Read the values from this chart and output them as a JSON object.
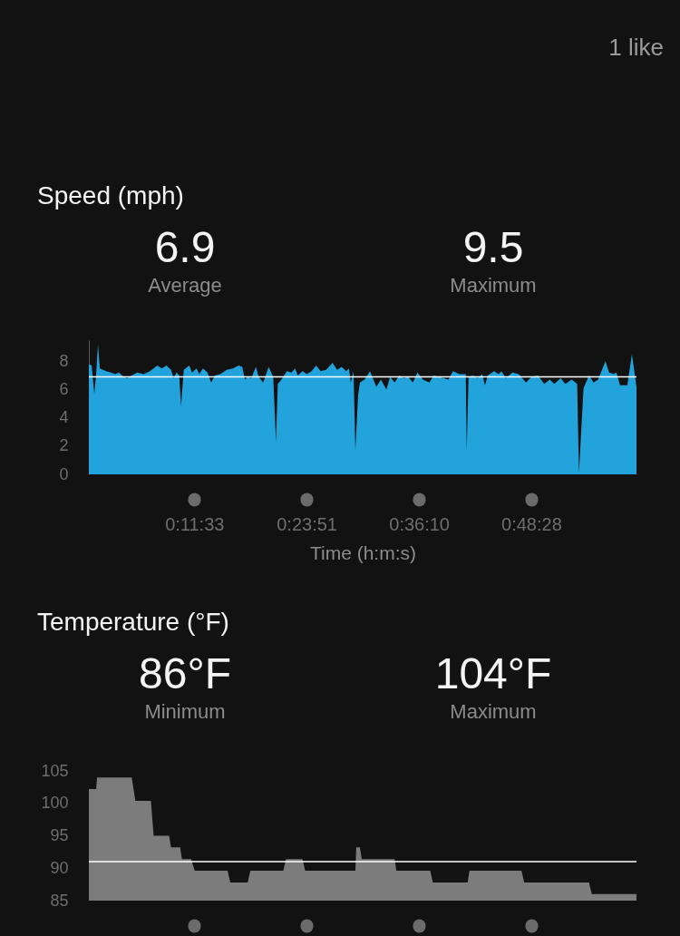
{
  "chart_data": [
    {
      "type": "other",
      "annotations": [
        "1 like"
      ]
    },
    {
      "type": "area",
      "title": "Speed (mph)",
      "annotations": [
        "6.9",
        "Average",
        "9.5",
        "Maximum"
      ],
      "xlabel": "Time (h:m:s)",
      "color": "#22a3dc",
      "x": [
        0,
        0.3,
        0.6,
        0.8,
        1.0,
        1.2,
        1.9,
        2.4,
        2.9,
        3.3,
        3.8,
        4.2,
        4.7,
        5.3,
        6.0,
        6.7,
        7.5,
        8.0,
        8.5,
        9.0,
        9.3,
        9.6,
        9.9,
        10.1,
        10.4,
        11.0,
        11.3,
        11.8,
        12.1,
        12.5,
        13.0,
        13.4,
        13.8,
        14.4,
        15.1,
        15.8,
        16.4,
        16.8,
        17.1,
        17.4,
        17.8,
        18.3,
        18.6,
        19.1,
        19.7,
        20.2,
        20.5,
        20.7,
        21.1,
        21.7,
        22.2,
        22.6,
        22.9,
        23.4,
        23.9,
        24.4,
        24.9,
        25.4,
        26.0,
        26.7,
        27.2,
        27.7,
        28.2,
        28.5,
        28.7,
        29.0,
        29.2,
        29.5,
        29.7,
        30.2,
        30.8,
        31.5,
        32.0,
        32.6,
        33.0,
        33.5,
        34.0,
        34.5,
        35.0,
        35.5,
        36.0,
        36.6,
        37.3,
        37.8,
        38.3,
        38.9,
        39.4,
        39.9,
        40.6,
        41.1,
        41.3,
        41.4,
        41.6,
        42.1,
        42.6,
        43.1,
        43.4,
        43.7,
        44.4,
        44.9,
        45.2,
        45.7,
        46.4,
        47.1,
        47.9,
        48.5,
        49.2,
        49.9,
        50.5,
        51.0,
        51.7,
        52.2,
        52.9,
        53.5,
        53.7,
        54.2,
        54.8,
        55.3,
        55.8,
        56.6,
        57.0,
        57.5,
        57.8,
        58.2,
        59.0,
        59.5,
        60.0
      ],
      "values": [
        7.8,
        7.7,
        5.7,
        7.1,
        9.2,
        7.5,
        7.3,
        7.2,
        7.1,
        7.2,
        6.9,
        6.8,
        7.0,
        7.2,
        7.1,
        7.3,
        7.7,
        7.5,
        7.7,
        7.4,
        6.8,
        7.2,
        7.0,
        4.8,
        7.4,
        7.7,
        7.2,
        7.5,
        7.1,
        7.5,
        7.2,
        6.5,
        7.0,
        7.1,
        7.4,
        7.5,
        7.7,
        7.6,
        6.7,
        6.9,
        6.8,
        7.6,
        6.9,
        6.5,
        7.6,
        6.9,
        2.3,
        6.4,
        6.7,
        7.3,
        7.2,
        7.5,
        7.0,
        7.3,
        7.1,
        7.3,
        7.7,
        7.3,
        7.4,
        7.9,
        7.4,
        7.6,
        7.3,
        7.5,
        6.5,
        7.3,
        1.7,
        5.6,
        6.5,
        6.7,
        7.3,
        6.2,
        6.7,
        6.0,
        6.9,
        6.5,
        7.0,
        6.8,
        6.9,
        6.5,
        7.2,
        6.7,
        6.5,
        7.0,
        6.9,
        6.8,
        6.7,
        7.3,
        7.1,
        7.1,
        7.1,
        1.7,
        6.9,
        7.0,
        6.8,
        7.1,
        6.3,
        7.0,
        7.3,
        7.1,
        7.3,
        6.8,
        7.2,
        7.1,
        6.5,
        6.9,
        7.0,
        6.4,
        6.7,
        6.4,
        6.8,
        6.4,
        6.7,
        6.4,
        0.1,
        6.1,
        7.0,
        6.5,
        6.7,
        8.0,
        7.2,
        7.1,
        7.2,
        6.3,
        6.3,
        8.5,
        6.2
      ],
      "xlim": [
        0,
        60
      ],
      "xticks": [
        {
          "value": 11.55,
          "label": "0:11:33"
        },
        {
          "value": 23.85,
          "label": "0:23:51"
        },
        {
          "value": 36.17,
          "label": "0:36:10"
        },
        {
          "value": 48.47,
          "label": "0:48:28"
        }
      ],
      "ylim": [
        0,
        9.5
      ],
      "yticks": [
        0,
        2,
        4,
        6,
        8
      ],
      "ref_lines": [
        {
          "axis": "y",
          "value": 6.9,
          "color": "#ffffff"
        }
      ]
    },
    {
      "type": "area",
      "title": "Temperature (°F)",
      "annotations": [
        "86°F",
        "Minimum",
        "104°F",
        "Maximum"
      ],
      "color": "#7c7c7c",
      "x": [
        0,
        0.8,
        0.9,
        4.7,
        5.1,
        6.8,
        7.1,
        8.8,
        9.0,
        10.0,
        10.2,
        11.2,
        11.6,
        15.2,
        15.5,
        17.4,
        17.7,
        21.3,
        21.6,
        23.4,
        23.7,
        29.2,
        29.3,
        29.7,
        29.9,
        33.5,
        33.7,
        37.4,
        37.7,
        41.5,
        41.7,
        47.4,
        47.7,
        54.8,
        55.1,
        60
      ],
      "values": [
        102.2,
        102.2,
        104,
        104,
        100.4,
        100.4,
        95,
        95,
        93.2,
        93.2,
        91.4,
        91.4,
        89.6,
        89.6,
        87.8,
        87.8,
        89.6,
        89.6,
        91.4,
        91.4,
        89.6,
        89.6,
        93.2,
        93.2,
        91.4,
        91.4,
        89.6,
        89.6,
        87.8,
        87.8,
        89.6,
        89.6,
        87.8,
        87.8,
        86,
        86
      ],
      "xlim": [
        0,
        60
      ],
      "xticks": [
        {
          "value": 11.55,
          "label": null
        },
        {
          "value": 23.85,
          "label": null
        },
        {
          "value": 36.17,
          "label": null
        },
        {
          "value": 48.47,
          "label": null
        }
      ],
      "ylim": [
        85,
        105
      ],
      "yticks": [
        85,
        90,
        95,
        100,
        105
      ],
      "tick_labels": "y",
      "ref_lines": [
        {
          "axis": "y",
          "value": 91,
          "color": "#ffffff"
        }
      ]
    }
  ]
}
